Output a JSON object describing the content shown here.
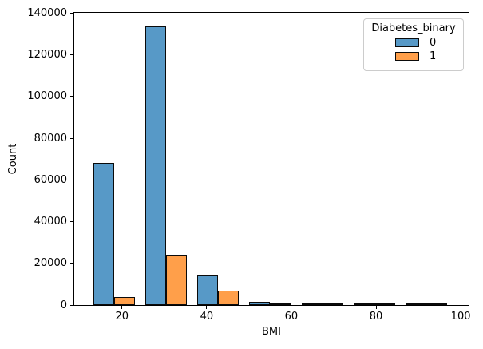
{
  "chart_data": {
    "type": "bar",
    "subtype": "histogram-dodged",
    "title": "",
    "xlabel": "BMI",
    "ylabel": "Count",
    "xlim": [
      8.73,
      101.87
    ],
    "ylim": [
      0,
      140200
    ],
    "x_ticks": [
      20,
      40,
      60,
      80,
      100
    ],
    "y_ticks": [
      0,
      20000,
      40000,
      60000,
      80000,
      100000,
      120000,
      140000
    ],
    "grid": "off",
    "bin_edges": [
      12,
      24.29,
      36.57,
      48.86,
      61.14,
      73.43,
      85.71,
      98
    ],
    "bin_centers": [
      18.14,
      30.43,
      42.71,
      55.0,
      67.29,
      79.57,
      91.86
    ],
    "bar_width_data_units": 4.91,
    "series": [
      {
        "name": "0",
        "color": "#5799C7",
        "values": [
          68000,
          133500,
          14500,
          1500,
          500,
          400,
          400
        ]
      },
      {
        "name": "1",
        "color": "#FF9F4A",
        "values": [
          3900,
          24000,
          6900,
          950,
          300,
          150,
          150
        ]
      }
    ],
    "edge_color": "#0a0a0a",
    "legend": {
      "title": "Diabetes_binary",
      "position": "upper right",
      "entries": [
        {
          "label": "0",
          "color": "#5799C7"
        },
        {
          "label": "1",
          "color": "#FF9F4A"
        }
      ]
    }
  }
}
